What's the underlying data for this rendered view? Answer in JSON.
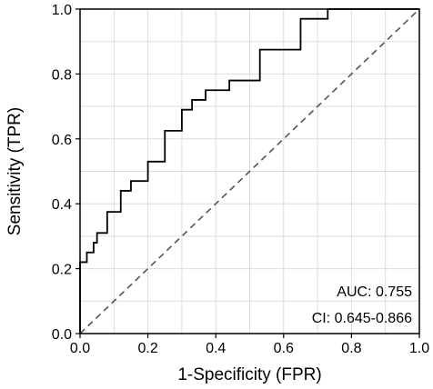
{
  "chart_data": {
    "type": "line",
    "title": "",
    "xlabel": "1-Specificity (FPR)",
    "ylabel": "Sensitivity (TPR)",
    "xlim": [
      0,
      1
    ],
    "ylim": [
      0,
      1
    ],
    "xticks": [
      "0.0",
      "0.2",
      "0.4",
      "0.6",
      "0.8",
      "1.0"
    ],
    "yticks": [
      "0.0",
      "0.2",
      "0.4",
      "0.6",
      "0.8",
      "1.0"
    ],
    "grid": true,
    "series": [
      {
        "style": "solid",
        "color": "#000000",
        "x": [
          0.0,
          0.0,
          0.02,
          0.02,
          0.04,
          0.04,
          0.05,
          0.05,
          0.08,
          0.08,
          0.12,
          0.12,
          0.15,
          0.15,
          0.2,
          0.2,
          0.25,
          0.25,
          0.3,
          0.3,
          0.33,
          0.33,
          0.37,
          0.37,
          0.44,
          0.44,
          0.53,
          0.53,
          0.65,
          0.65,
          0.73,
          0.73,
          1.0
        ],
        "y": [
          0.0,
          0.22,
          0.22,
          0.25,
          0.25,
          0.28,
          0.28,
          0.31,
          0.31,
          0.375,
          0.375,
          0.44,
          0.44,
          0.47,
          0.47,
          0.53,
          0.53,
          0.625,
          0.625,
          0.69,
          0.69,
          0.72,
          0.72,
          0.75,
          0.75,
          0.78,
          0.78,
          0.875,
          0.875,
          0.97,
          0.97,
          1.0,
          1.0
        ]
      },
      {
        "style": "dashed",
        "color": "#555555",
        "x": [
          0,
          1
        ],
        "y": [
          0,
          1
        ]
      }
    ],
    "annotations": {
      "auc": "AUC: 0.755",
      "ci": "CI: 0.645-0.866"
    }
  }
}
